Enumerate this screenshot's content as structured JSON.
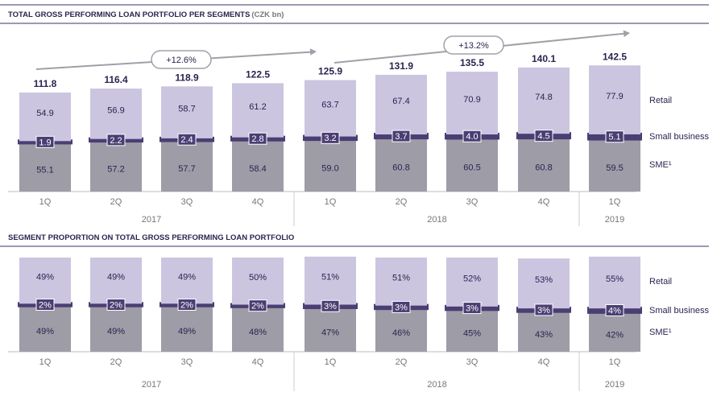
{
  "chart_data": [
    {
      "type": "stacked_bar",
      "title": "TOTAL GROSS PERFORMING LOAN PORTFOLIO PER SEGMENTS",
      "unit": "(CZK bn)",
      "categories": [
        "1Q",
        "2Q",
        "3Q",
        "4Q",
        "1Q",
        "2Q",
        "3Q",
        "4Q",
        "1Q"
      ],
      "years": [
        "2017",
        "2017",
        "2017",
        "2017",
        "2018",
        "2018",
        "2018",
        "2018",
        "2019"
      ],
      "series": [
        {
          "name": "SME¹",
          "color": "#9e9ca6",
          "values": [
            55.1,
            57.2,
            57.7,
            58.4,
            59.0,
            60.8,
            60.5,
            60.8,
            59.5
          ],
          "value_labels": [
            "55.1",
            "57.2",
            "57.7",
            "58.4",
            "59.0",
            "60.8",
            "60.5",
            "60.8",
            "59.5"
          ]
        },
        {
          "name": "Small business",
          "color": "#4a3e73",
          "values": [
            1.9,
            2.2,
            2.4,
            2.8,
            3.2,
            3.7,
            4.0,
            4.5,
            5.1
          ],
          "value_labels": [
            "1.9",
            "2.2",
            "2.4",
            "2.8",
            "3.2",
            "3.7",
            "4.0",
            "4.5",
            "5.1"
          ]
        },
        {
          "name": "Retail",
          "color": "#cbc5e0",
          "values": [
            54.9,
            56.9,
            58.7,
            61.2,
            63.7,
            67.4,
            70.9,
            74.8,
            77.9
          ],
          "value_labels": [
            "54.9",
            "56.9",
            "58.7",
            "61.2",
            "63.7",
            "67.4",
            "70.9",
            "74.8",
            "77.9"
          ]
        }
      ],
      "totals": [
        111.8,
        116.4,
        118.9,
        122.5,
        125.9,
        131.9,
        135.5,
        140.1,
        142.5
      ],
      "annotations": [
        "+12.6%",
        "+13.2%"
      ]
    },
    {
      "type": "stacked_bar",
      "title": "SEGMENT PROPORTION ON TOTAL GROSS PERFORMING LOAN PORTFOLIO",
      "categories": [
        "1Q",
        "2Q",
        "3Q",
        "4Q",
        "1Q",
        "2Q",
        "3Q",
        "4Q",
        "1Q"
      ],
      "years": [
        "2017",
        "2017",
        "2017",
        "2017",
        "2018",
        "2018",
        "2018",
        "2018",
        "2019"
      ],
      "series": [
        {
          "name": "SME¹",
          "color": "#9e9ca6",
          "values": [
            49,
            49,
            49,
            48,
            47,
            46,
            45,
            43,
            42
          ],
          "value_labels": [
            "49%",
            "49%",
            "49%",
            "48%",
            "47%",
            "46%",
            "45%",
            "43%",
            "42%"
          ]
        },
        {
          "name": "Small business",
          "color": "#4a3e73",
          "values": [
            2,
            2,
            2,
            2,
            3,
            3,
            3,
            3,
            4
          ],
          "value_labels": [
            "2%",
            "2%",
            "2%",
            "2%",
            "3%",
            "3%",
            "3%",
            "3%",
            "4%"
          ]
        },
        {
          "name": "Retail",
          "color": "#cbc5e0",
          "values": [
            49,
            49,
            49,
            50,
            51,
            51,
            52,
            53,
            55
          ],
          "value_labels": [
            "49%",
            "49%",
            "49%",
            "50%",
            "51%",
            "51%",
            "52%",
            "53%",
            "55%"
          ]
        }
      ]
    }
  ]
}
